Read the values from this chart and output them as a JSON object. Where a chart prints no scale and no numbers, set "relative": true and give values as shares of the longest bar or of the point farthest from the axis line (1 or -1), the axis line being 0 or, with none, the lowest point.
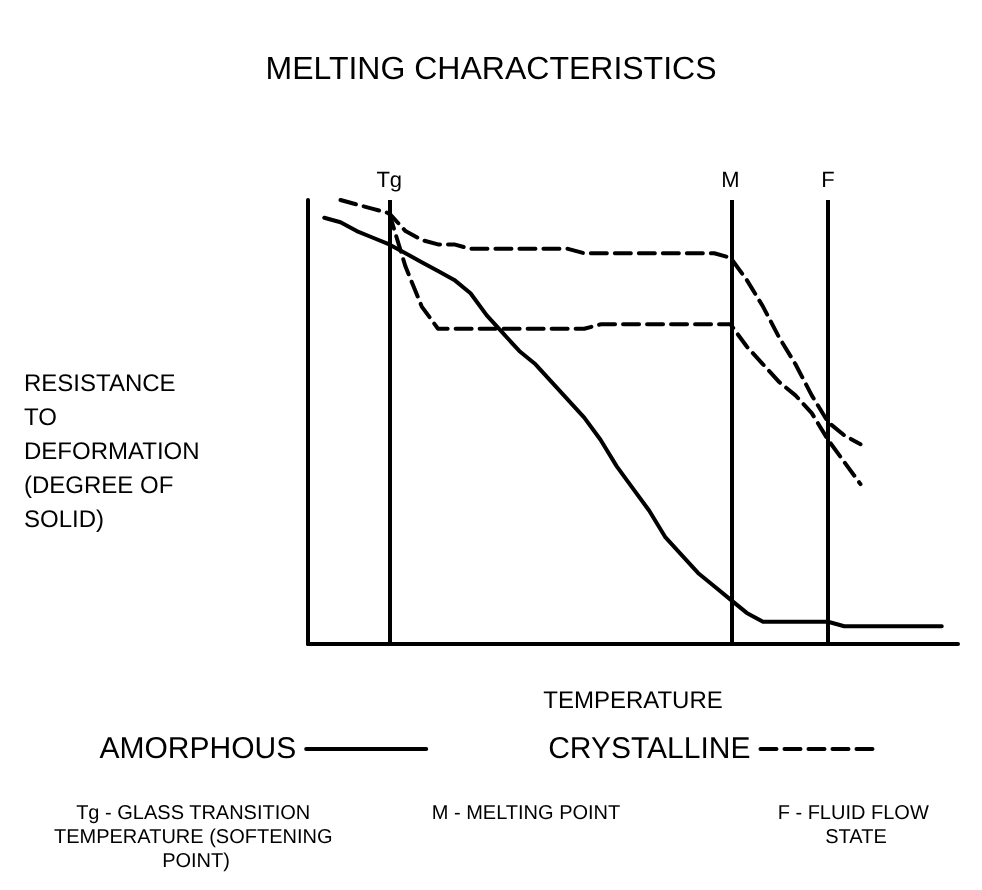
{
  "chart_data": {
    "type": "line",
    "title": "MELTING CHARACTERISTICS",
    "xlabel": "TEMPERATURE",
    "ylabel": "RESISTANCE TO DEFORMATION (DEGREE OF SOLID)",
    "relative": true,
    "tick_labels": "x",
    "grid": false,
    "legend": "bottom",
    "marker": "none",
    "categories": [
      null,
      null,
      null,
      null,
      null,
      "Tg",
      null,
      null,
      null,
      null,
      null,
      null,
      null,
      null,
      null,
      null,
      null,
      null,
      null,
      null,
      null,
      null,
      null,
      null,
      null,
      null,
      "M",
      null,
      null,
      null,
      null,
      null,
      "F",
      null,
      null,
      null,
      null,
      null,
      null,
      null,
      null
    ],
    "series": [
      {
        "name": "AMORPHOUS",
        "color": "#000000",
        "line_style": "solid",
        "values": [
          null,
          0.96,
          0.95,
          0.93,
          0.915,
          0.9,
          0.88,
          0.86,
          0.84,
          0.82,
          0.79,
          0.74,
          0.7,
          0.66,
          0.63,
          0.59,
          0.55,
          0.51,
          0.46,
          0.4,
          0.35,
          0.3,
          0.24,
          0.2,
          0.16,
          0.13,
          0.1,
          0.07,
          0.05,
          0.05,
          0.05,
          0.05,
          0.05,
          0.04,
          0.04,
          0.04,
          0.04,
          0.04,
          0.04,
          0.04,
          null
        ]
      },
      {
        "name": "CRYSTALLINE",
        "color": "#000000",
        "line_style": "dashed",
        "values": [
          null,
          null,
          1.0,
          0.99,
          0.98,
          0.97,
          0.93,
          0.91,
          0.9,
          0.9,
          0.89,
          0.89,
          0.89,
          0.89,
          0.89,
          0.89,
          0.89,
          0.88,
          0.88,
          0.88,
          0.88,
          0.88,
          0.88,
          0.88,
          0.88,
          0.88,
          0.87,
          0.82,
          0.76,
          0.69,
          0.63,
          0.56,
          0.5,
          0.47,
          0.45,
          null,
          null,
          null,
          null,
          null,
          null
        ]
      },
      {
        "color": "#000000",
        "line_style": "dashed",
        "values": [
          null,
          null,
          null,
          null,
          null,
          0.97,
          0.85,
          0.76,
          0.71,
          0.71,
          0.71,
          0.71,
          0.71,
          0.71,
          0.71,
          0.71,
          0.71,
          0.71,
          0.72,
          0.72,
          0.72,
          0.72,
          0.72,
          0.72,
          0.72,
          0.72,
          0.72,
          0.67,
          0.63,
          0.59,
          0.56,
          0.52,
          0.46,
          0.41,
          0.36,
          null,
          null,
          null,
          null,
          null,
          null
        ]
      }
    ],
    "ref_lines": [
      {
        "axis": "x",
        "value": "Tg",
        "color": "#000000"
      },
      {
        "axis": "x",
        "value": "M",
        "color": "#000000"
      },
      {
        "axis": "x",
        "value": "F",
        "color": "#000000"
      }
    ],
    "annotations": [
      "Tg - GLASS TRANSITION TEMPERATURE (SOFTENING POINT)",
      "M - MELTING POINT",
      "F - FLUID FLOW STATE"
    ]
  }
}
